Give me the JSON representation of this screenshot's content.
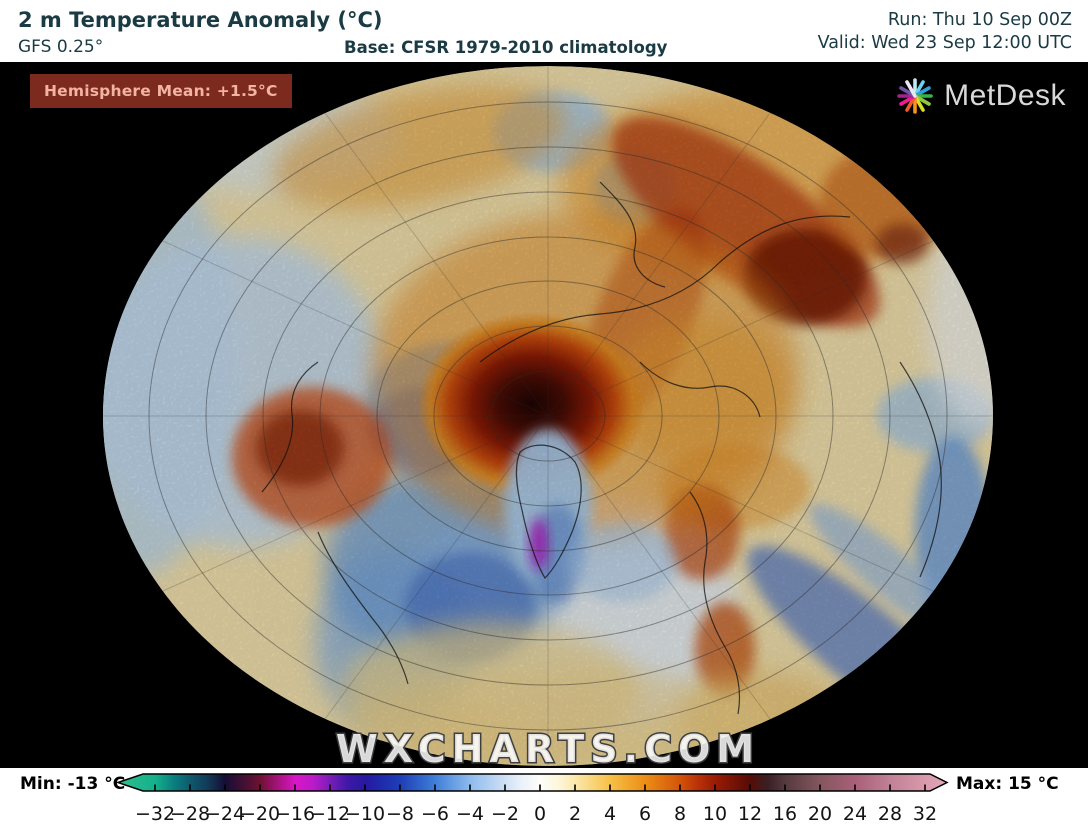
{
  "header": {
    "title": "2 m Temperature Anomaly (°C)",
    "model": "GFS 0.25°",
    "base": "Base: CFSR 1979-2010 climatology",
    "run": "Run: Thu 10 Sep 00Z",
    "valid": "Valid: Wed 23 Sep 12:00 UTC",
    "text_color": "#1a3a44"
  },
  "map": {
    "badge_label": "Hemisphere Mean: +1.5°C",
    "badge_bg": "#7c2a1d",
    "badge_fg": "#f3b3a3",
    "watermark": "WXCHARTS.COM",
    "logo_text": "MetDesk",
    "background": "#000000"
  },
  "colorbar": {
    "min_label": "Min: -13 °C",
    "max_label": "Max: 15 °C",
    "ticks": [
      "−32",
      "−28",
      "−24",
      "−20",
      "−16",
      "−12",
      "−10",
      "−8",
      "−6",
      "−4",
      "−2",
      "0",
      "2",
      "4",
      "6",
      "8",
      "10",
      "12",
      "16",
      "20",
      "24",
      "28",
      "32"
    ],
    "gradient": [
      {
        "o": 0.0,
        "c": "#2fbf8f"
      },
      {
        "o": 0.045,
        "c": "#14b18b"
      },
      {
        "o": 0.066,
        "c": "#0b8181"
      },
      {
        "o": 0.087,
        "c": "#0e5a6d"
      },
      {
        "o": 0.108,
        "c": "#123a58"
      },
      {
        "o": 0.129,
        "c": "#150e35"
      },
      {
        "o": 0.15,
        "c": "#3f1034"
      },
      {
        "o": 0.171,
        "c": "#6d1132"
      },
      {
        "o": 0.192,
        "c": "#a31378"
      },
      {
        "o": 0.214,
        "c": "#d916c6"
      },
      {
        "o": 0.235,
        "c": "#bb1bca"
      },
      {
        "o": 0.256,
        "c": "#7a1db6"
      },
      {
        "o": 0.277,
        "c": "#3f18a8"
      },
      {
        "o": 0.298,
        "c": "#2818a0"
      },
      {
        "o": 0.319,
        "c": "#1e2cac"
      },
      {
        "o": 0.34,
        "c": "#1e3eb6"
      },
      {
        "o": 0.382,
        "c": "#3e7dd8"
      },
      {
        "o": 0.425,
        "c": "#8ebbee"
      },
      {
        "o": 0.467,
        "c": "#cfe0f5"
      },
      {
        "o": 0.488,
        "c": "#ecf2f9"
      },
      {
        "o": 0.509,
        "c": "#fdfdf9"
      },
      {
        "o": 0.53,
        "c": "#fdf7dd"
      },
      {
        "o": 0.551,
        "c": "#fbe9ae"
      },
      {
        "o": 0.593,
        "c": "#f7c148"
      },
      {
        "o": 0.636,
        "c": "#ec8d16"
      },
      {
        "o": 0.678,
        "c": "#d4540a"
      },
      {
        "o": 0.699,
        "c": "#b93307"
      },
      {
        "o": 0.72,
        "c": "#9a1c05"
      },
      {
        "o": 0.762,
        "c": "#570c06"
      },
      {
        "o": 0.784,
        "c": "#392024"
      },
      {
        "o": 0.805,
        "c": "#553a3e"
      },
      {
        "o": 0.847,
        "c": "#85565e"
      },
      {
        "o": 0.889,
        "c": "#a86078"
      },
      {
        "o": 0.931,
        "c": "#c08095"
      },
      {
        "o": 0.973,
        "c": "#d899ac"
      },
      {
        "o": 1.0,
        "c": "#e2a8ba"
      }
    ]
  }
}
